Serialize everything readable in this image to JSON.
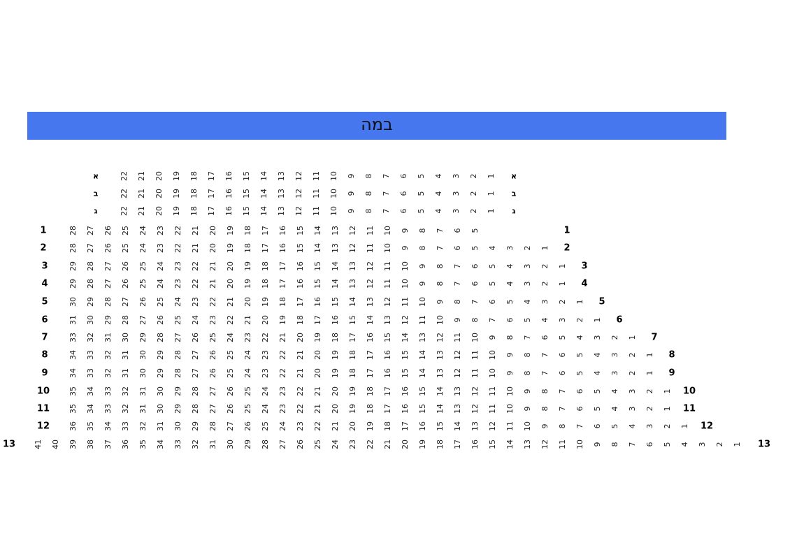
{
  "stage": {
    "label": "במה",
    "color": "#4677ee"
  },
  "balcony_rows": [
    {
      "label": "א",
      "seats_from": 22,
      "seats_to": 1
    },
    {
      "label": "ב",
      "seats_from": 22,
      "seats_to": 1
    },
    {
      "label": "ג",
      "seats_from": 22,
      "seats_to": 1
    }
  ],
  "rows": [
    {
      "label": "1",
      "seats_from": 28,
      "seats_to": 5
    },
    {
      "label": "2",
      "seats_from": 28,
      "seats_to": 1
    },
    {
      "label": "3",
      "seats_from": 29,
      "seats_to": 1
    },
    {
      "label": "4",
      "seats_from": 29,
      "seats_to": 1
    },
    {
      "label": "5",
      "seats_from": 30,
      "seats_to": 1
    },
    {
      "label": "6",
      "seats_from": 31,
      "seats_to": 1
    },
    {
      "label": "7",
      "seats_from": 33,
      "seats_to": 1
    },
    {
      "label": "8",
      "seats_from": 34,
      "seats_to": 1
    },
    {
      "label": "9",
      "seats_from": 34,
      "seats_to": 1
    },
    {
      "label": "10",
      "seats_from": 35,
      "seats_to": 1
    },
    {
      "label": "11",
      "seats_from": 35,
      "seats_to": 1
    },
    {
      "label": "12",
      "seats_from": 36,
      "seats_to": 1
    },
    {
      "label": "13",
      "seats_from": 41,
      "seats_to": 1
    }
  ]
}
